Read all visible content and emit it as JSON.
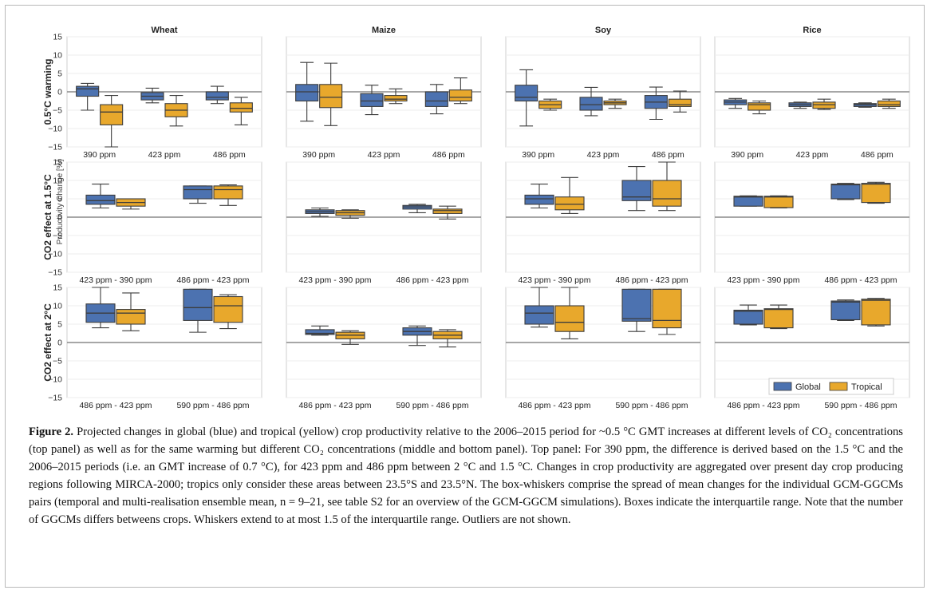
{
  "chart_data": {
    "type": "box",
    "crops": [
      "Wheat",
      "Maize",
      "Soy",
      "Rice"
    ],
    "row_labels": [
      "0.5°C warming",
      "CO2 effect at 1.5°C",
      "CO2 effect at 2°C"
    ],
    "ylabel": "Productivity Change [%]",
    "ylim": [
      -15,
      15
    ],
    "yticks": [
      15,
      10,
      5,
      0,
      -5,
      -10,
      -15
    ],
    "legend": {
      "position": "bottom-right",
      "entries": [
        {
          "name": "Global",
          "color": "#4c72b0"
        },
        {
          "name": "Tropical",
          "color": "#e8a82c"
        }
      ]
    },
    "series_colors": {
      "global": "#4c72b0",
      "tropical": "#e8a82c"
    },
    "categories": [
      [
        "390 ppm",
        "423 ppm",
        "486 ppm"
      ],
      [
        "423 ppm - 390 ppm",
        "486 ppm - 423 ppm"
      ],
      [
        "486 ppm - 423 ppm",
        "590 ppm - 486 ppm"
      ]
    ],
    "panels": [
      {
        "row": 0,
        "crop": "Wheat",
        "groups": [
          {
            "global": [
              -5,
              -1.2,
              0.8,
              1.5,
              2.3
            ],
            "tropical": [
              -15,
              -9,
              -5.5,
              -3.5,
              -1
            ]
          },
          {
            "global": [
              -3,
              -2.2,
              -1.2,
              -0.2,
              1
            ],
            "tropical": [
              -9.3,
              -6.8,
              -5,
              -3.2,
              -1
            ]
          },
          {
            "global": [
              -3.2,
              -2.2,
              -1.5,
              0,
              1.5
            ],
            "tropical": [
              -9,
              -5.5,
              -4.5,
              -3,
              -1.5
            ]
          }
        ]
      },
      {
        "row": 0,
        "crop": "Maize",
        "groups": [
          {
            "global": [
              -8,
              -2.5,
              0,
              2,
              8
            ],
            "tropical": [
              -9.2,
              -4.3,
              -1.5,
              2,
              7.8
            ]
          },
          {
            "global": [
              -6.2,
              -4,
              -2.5,
              -0.5,
              1.8
            ],
            "tropical": [
              -3.2,
              -2.5,
              -2,
              -1,
              0.8
            ]
          },
          {
            "global": [
              -6,
              -4,
              -2.5,
              0,
              2
            ]
          },
          {
            "tropical_of_prev": true
          }
        ]
      },
      {
        "row": 0,
        "crop": "Soy",
        "groups": [
          {
            "global": [
              -9.3,
              -2.5,
              -1.5,
              1.8,
              6
            ],
            "tropical": [
              -5,
              -4.5,
              -3.5,
              -2.5,
              -2
            ]
          },
          {
            "global": [
              -6.5,
              -5,
              -3.5,
              -1.5,
              1.2
            ],
            "tropical": [
              -4.5,
              -3.5,
              -3,
              -2.5,
              -2
            ]
          },
          {
            "global": [
              -7.5,
              -4.5,
              -2.8,
              -1,
              1.3
            ],
            "tropical": [
              -5.5,
              -4,
              -3.5,
              -2,
              0.2
            ]
          }
        ]
      },
      {
        "row": 0,
        "crop": "Rice",
        "groups": [
          {
            "global": [
              -4.5,
              -3.5,
              -2.8,
              -2.2,
              -1.8
            ],
            "tropical": [
              -6,
              -5,
              -3.5,
              -3,
              -2.5
            ]
          },
          {
            "global": [
              -4.5,
              -4,
              -3.5,
              -3,
              -2.8
            ],
            "tropical": [
              -4.8,
              -4.5,
              -3.5,
              -2.8,
              -2
            ]
          },
          {
            "global": [
              -4.2,
              -4,
              -3.5,
              -3.2,
              -3
            ],
            "tropical": [
              -4.5,
              -4,
              -3.5,
              -2.5,
              -2
            ]
          }
        ]
      }
    ]
  },
  "box_values": {
    "r0": {
      "Wheat": [
        [
          [
            -5,
            -1.2,
            0.8,
            1.5,
            2.3
          ],
          [
            -15,
            -9,
            -5.5,
            -3.5,
            -1
          ]
        ],
        [
          [
            -3,
            -2.2,
            -1.2,
            -0.2,
            1
          ],
          [
            -9.3,
            -6.8,
            -5,
            -3.2,
            -1
          ]
        ],
        [
          [
            -3.2,
            -2.2,
            -1.5,
            0,
            1.5
          ],
          [
            -9,
            -5.5,
            -4.5,
            -3,
            -1.5
          ]
        ]
      ],
      "Maize": [
        [
          [
            -8,
            -2.5,
            0,
            2,
            8
          ],
          [
            -9.2,
            -4.3,
            -1.5,
            2,
            7.8
          ]
        ],
        [
          [
            -6.2,
            -4,
            -2.5,
            -0.5,
            1.8
          ],
          [
            -3.2,
            -2.5,
            -2,
            -1,
            0.8
          ]
        ],
        [
          [
            -6,
            -4,
            -2.5,
            0,
            2
          ],
          [
            -3.2,
            -2.5,
            -1.5,
            0.5,
            3.8
          ]
        ]
      ],
      "Soy": [
        [
          [
            -9.3,
            -2.5,
            -1.5,
            1.8,
            6
          ],
          [
            -5,
            -4.5,
            -3.5,
            -2.5,
            -2
          ]
        ],
        [
          [
            -6.5,
            -5,
            -3.5,
            -1.5,
            1.2
          ],
          [
            -4.5,
            -3.5,
            -3,
            -2.5,
            -2
          ]
        ],
        [
          [
            -7.5,
            -4.5,
            -2.8,
            -1,
            1.3
          ],
          [
            -5.5,
            -4,
            -3.5,
            -2,
            0.2
          ]
        ]
      ],
      "Rice": [
        [
          [
            -4.5,
            -3.5,
            -2.8,
            -2.2,
            -1.8
          ],
          [
            -6,
            -5,
            -3.5,
            -3,
            -2.5
          ]
        ],
        [
          [
            -4.5,
            -4,
            -3.5,
            -3,
            -2.8
          ],
          [
            -4.8,
            -4.5,
            -3.5,
            -2.8,
            -2
          ]
        ],
        [
          [
            -4.2,
            -4,
            -3.5,
            -3.2,
            -3
          ],
          [
            -4.5,
            -4,
            -3.5,
            -2.5,
            -2
          ]
        ]
      ]
    },
    "r1": {
      "Wheat": [
        [
          [
            2.5,
            3.5,
            4.5,
            6,
            9
          ],
          [
            2.2,
            3,
            4,
            5,
            5
          ]
        ],
        [
          [
            3.8,
            5,
            7.5,
            8.5,
            8.5
          ],
          [
            3.2,
            5,
            7.5,
            8.5,
            8.8
          ]
        ]
      ],
      "Maize": [
        [
          [
            0.2,
            1,
            1.5,
            2,
            2.5
          ],
          [
            -0.3,
            0.5,
            1.2,
            1.8,
            2
          ]
        ],
        [
          [
            1.2,
            2.2,
            2.8,
            3.2,
            3.5
          ],
          [
            -0.5,
            1,
            1.8,
            2.2,
            3
          ]
        ]
      ],
      "Soy": [
        [
          [
            2.5,
            3.5,
            5,
            6,
            9
          ],
          [
            1,
            2,
            3.5,
            5.5,
            10.8
          ]
        ],
        [
          [
            1.8,
            4.5,
            5.5,
            10,
            13.8
          ],
          [
            1.8,
            3,
            5,
            10,
            15
          ]
        ]
      ],
      "Rice": [
        [
          [
            3,
            3,
            5.5,
            5.7,
            5.8
          ],
          [
            2.5,
            2.6,
            5.5,
            5.7,
            5.8
          ]
        ],
        [
          [
            4.8,
            5,
            8.8,
            9,
            9.2
          ],
          [
            3.8,
            4,
            9,
            9.2,
            9.5
          ]
        ]
      ]
    },
    "r2": {
      "Wheat": [
        [
          [
            4,
            5.5,
            8,
            10.5,
            15
          ],
          [
            3.2,
            5,
            8,
            9,
            13.5
          ]
        ],
        [
          [
            2.8,
            6,
            9.5,
            14.5,
            14.5
          ],
          [
            3.8,
            5.5,
            10,
            12.5,
            13
          ]
        ]
      ],
      "Maize": [
        [
          [
            2,
            2.2,
            2.5,
            3.5,
            4.5
          ],
          [
            -0.5,
            1,
            2,
            2.8,
            3.2
          ]
        ],
        [
          [
            -0.8,
            2,
            3,
            4,
            4.5
          ],
          [
            -1.2,
            1,
            2,
            3,
            3.5
          ]
        ]
      ],
      "Soy": [
        [
          [
            4.2,
            5,
            8,
            10,
            15
          ],
          [
            1,
            3,
            5.5,
            10,
            15
          ]
        ],
        [
          [
            3,
            5.8,
            6.5,
            14.5,
            14.5
          ],
          [
            2.2,
            4,
            6,
            14.5,
            14.5
          ]
        ]
      ],
      "Rice": [
        [
          [
            4.8,
            5,
            8.5,
            8.8,
            10.2
          ],
          [
            3.8,
            4,
            9,
            9.2,
            10.2
          ]
        ],
        [
          [
            6,
            6.2,
            11,
            11.3,
            11.6
          ],
          [
            4.5,
            4.8,
            11.5,
            11.8,
            12
          ]
        ]
      ]
    }
  },
  "row_tick_labels": [
    "15",
    "10",
    "5",
    "0",
    "−5",
    "−10",
    "−15"
  ],
  "caption": {
    "label": "Figure 2.",
    "text": "Projected changes in global (blue) and tropical (yellow) crop productivity relative to the 2006–2015 period for ~0.5 °C GMT increases at different levels of CO₂ concentrations (top panel) as well as for the same warming but different CO₂ concentrations (middle and bottom panel). Top panel: For 390 ppm, the difference is derived based on the 1.5 °C and the 2006–2015 periods (i.e. an GMT increase of 0.7 °C), for 423 ppm and 486 ppm between 2 °C and 1.5 °C. Changes in crop productivity are aggregated over present day crop producing regions following MIRCA-2000; tropics only consider these areas between 23.5°S and 23.5°N. The box-whiskers comprise the spread of mean changes for the individual GCM-GGCMs pairs (temporal and multi-realisation ensemble mean, n = 9–21, see table S2 for an overview of the GCM-GGCM simulations). Boxes indicate the interquartile range. Note that the number of GGCMs differs betweens crops. Whiskers extend to at most 1.5 of the interquartile range. Outliers are not shown."
  }
}
